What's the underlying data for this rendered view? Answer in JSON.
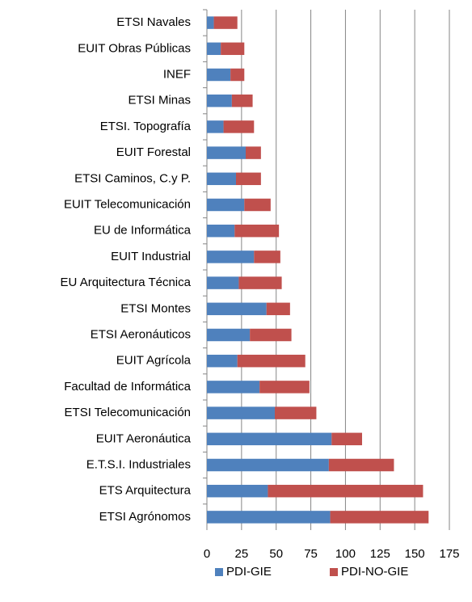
{
  "chart_data": {
    "type": "stacked-barh",
    "categories": [
      "ETSI Navales",
      "EUIT Obras Públicas",
      "INEF",
      "ETSI Minas",
      "ETSI. Topografía",
      "EUIT Forestal",
      "ETSI Caminos, C.y P.",
      "EUIT Telecomunicación",
      "EU de Informática",
      "EUIT Industrial",
      "EU Arquitectura Técnica",
      "ETSI Montes",
      "ETSI Aeronáuticos",
      "EUIT Agrícola",
      "Facultad de Informática",
      "ETSI Telecomunicación",
      "EUIT Aeronáutica",
      "E.T.S.I. Industriales",
      "ETS Arquitectura",
      "ETSI Agrónomos"
    ],
    "series": [
      {
        "name": "PDI-GIE",
        "color": "#4f81bd",
        "values": [
          5,
          10,
          17,
          18,
          12,
          28,
          21,
          27,
          20,
          34,
          23,
          43,
          31,
          22,
          38,
          49,
          90,
          88,
          44,
          89
        ]
      },
      {
        "name": "PDI-NO-GIE",
        "color": "#c0504d",
        "values": [
          17,
          17,
          10,
          15,
          22,
          11,
          18,
          19,
          32,
          19,
          31,
          17,
          30,
          49,
          36,
          30,
          22,
          47,
          112,
          71
        ]
      }
    ],
    "xlim": [
      0,
      175
    ],
    "xticks": [
      0,
      25,
      50,
      75,
      100,
      125,
      150,
      175
    ],
    "grid": true,
    "legend": "bottom"
  }
}
